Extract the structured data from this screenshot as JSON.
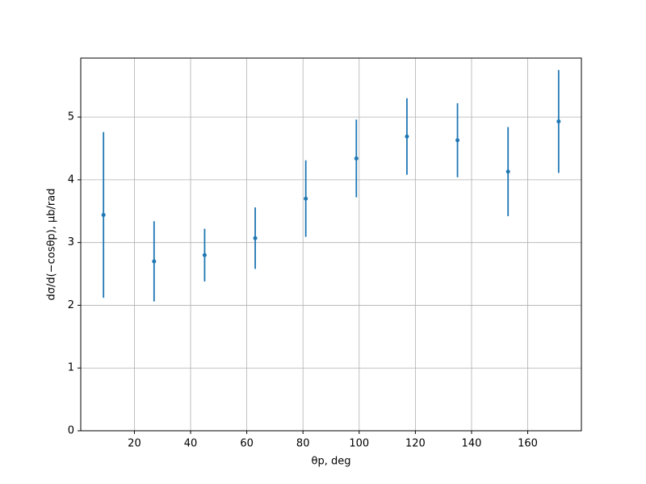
{
  "chart_data": {
    "type": "errorbar",
    "xlabel": "θp, deg",
    "ylabel": "dσ/d(−cosθp), μb/rad",
    "x": [
      9,
      27,
      45,
      63,
      81,
      99,
      117,
      135,
      153,
      171
    ],
    "series": [
      {
        "color": "#1f77b4",
        "values": [
          3.44,
          2.7,
          2.8,
          3.07,
          3.7,
          4.34,
          4.69,
          4.63,
          4.13,
          4.93
        ],
        "errors": [
          1.32,
          0.64,
          0.42,
          0.49,
          0.61,
          0.62,
          0.61,
          0.59,
          0.71,
          0.82
        ]
      }
    ],
    "xlim": [
      0.9,
      179.1
    ],
    "xticks": [
      20,
      40,
      60,
      80,
      100,
      120,
      140,
      160
    ],
    "ylim": [
      0,
      5.94
    ],
    "yticks": [
      0,
      1,
      2,
      3,
      4,
      5
    ],
    "grid": true
  }
}
